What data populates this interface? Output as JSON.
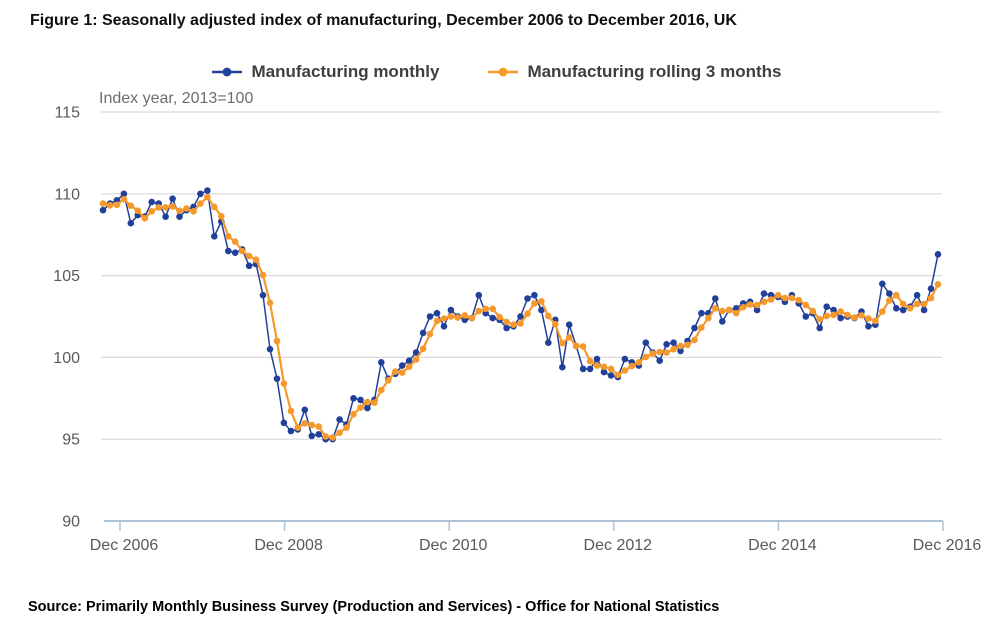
{
  "figure": {
    "title": "Figure 1: Seasonally adjusted index of manufacturing, December 2006 to December 2016, UK",
    "subtitle": "Index year, 2013=100",
    "source": "Source: Primarily Monthly Business Survey (Production and Services) - Office for National Statistics"
  },
  "legend": [
    {
      "label": "Manufacturing monthly",
      "color": "#21409A"
    },
    {
      "label": "Manufacturing rolling 3 months",
      "color": "#F6992C"
    }
  ],
  "colors": {
    "grid": "#d9d9d9",
    "axis": "#aec4d6",
    "tick_text": "#595959"
  },
  "chart_data": {
    "type": "line",
    "title": "Figure 1: Seasonally adjusted index of manufacturing, December 2006 to December 2016, UK",
    "unit_label": "Index year, 2013=100",
    "x_unit": "month",
    "x_range": [
      "Dec 2006",
      "Dec 2016"
    ],
    "x_tick_labels": [
      "Dec 2006",
      "Dec 2008",
      "Dec 2010",
      "Dec 2012",
      "Dec 2014",
      "Dec 2016"
    ],
    "y_ticks": [
      90,
      95,
      100,
      105,
      110,
      115
    ],
    "ylim": [
      90,
      115
    ],
    "grid": true,
    "legend_position": "top",
    "series": [
      {
        "name": "Manufacturing monthly",
        "color": "#21409A",
        "values": [
          109.0,
          109.4,
          109.6,
          110.0,
          108.2,
          108.7,
          108.6,
          109.5,
          109.4,
          108.6,
          109.7,
          108.6,
          109.0,
          109.2,
          110.0,
          110.2,
          107.4,
          108.3,
          106.5,
          106.4,
          106.6,
          105.6,
          105.7,
          103.8,
          100.5,
          98.7,
          96.0,
          95.5,
          95.6,
          96.8,
          95.2,
          95.3,
          95.0,
          95.0,
          96.2,
          95.9,
          97.5,
          97.4,
          96.9,
          97.4,
          99.7,
          98.7,
          99.0,
          99.5,
          99.8,
          100.3,
          101.5,
          102.5,
          102.7,
          101.9,
          102.9,
          102.5,
          102.3,
          102.4,
          103.8,
          102.7,
          102.4,
          102.3,
          101.8,
          101.9,
          102.5,
          103.6,
          103.8,
          102.9,
          100.9,
          102.3,
          99.4,
          102.0,
          100.7,
          99.3,
          99.3,
          99.9,
          99.1,
          98.9,
          98.8,
          99.9,
          99.7,
          99.5,
          100.9,
          100.3,
          99.8,
          100.8,
          100.9,
          100.4,
          101.0,
          101.8,
          102.7,
          102.7,
          103.6,
          102.2,
          102.9,
          103.0,
          103.3,
          103.4,
          102.9,
          103.9,
          103.8,
          103.7,
          103.4,
          103.8,
          103.3,
          102.5,
          102.7,
          101.8,
          103.1,
          102.9,
          102.4,
          102.5,
          102.4,
          102.8,
          101.9,
          102.0,
          104.5,
          103.9,
          103.0,
          102.9,
          103.1,
          103.8,
          102.9,
          104.2,
          106.3
        ]
      },
      {
        "name": "Manufacturing rolling 3 months",
        "color": "#F6992C",
        "values": [
          109.4,
          109.3,
          109.33,
          109.67,
          109.27,
          108.97,
          108.5,
          108.93,
          109.17,
          109.17,
          109.23,
          108.97,
          109.1,
          108.93,
          109.4,
          109.8,
          109.2,
          108.63,
          107.4,
          107.07,
          106.5,
          106.2,
          105.97,
          105.03,
          103.33,
          101.0,
          98.4,
          96.73,
          95.7,
          95.97,
          95.87,
          95.77,
          95.17,
          95.1,
          95.4,
          95.7,
          96.53,
          96.93,
          97.27,
          97.23,
          98.0,
          98.6,
          99.13,
          99.07,
          99.43,
          99.87,
          100.53,
          101.43,
          102.23,
          102.37,
          102.5,
          102.43,
          102.57,
          102.4,
          102.83,
          102.97,
          102.97,
          102.47,
          102.17,
          102.0,
          102.07,
          102.67,
          103.3,
          103.43,
          102.53,
          102.03,
          100.87,
          101.23,
          100.7,
          100.67,
          99.77,
          99.5,
          99.43,
          99.3,
          98.93,
          99.2,
          99.47,
          99.7,
          100.03,
          100.23,
          100.33,
          100.3,
          100.5,
          100.7,
          100.77,
          101.07,
          101.83,
          102.4,
          103.0,
          102.83,
          102.9,
          102.7,
          103.07,
          103.23,
          103.2,
          103.4,
          103.53,
          103.8,
          103.63,
          103.63,
          103.5,
          103.2,
          102.83,
          102.33,
          102.53,
          102.6,
          102.8,
          102.6,
          102.43,
          102.57,
          102.37,
          102.23,
          102.8,
          103.47,
          103.8,
          103.27,
          103.0,
          103.27,
          103.27,
          103.63,
          104.47
        ]
      }
    ]
  }
}
